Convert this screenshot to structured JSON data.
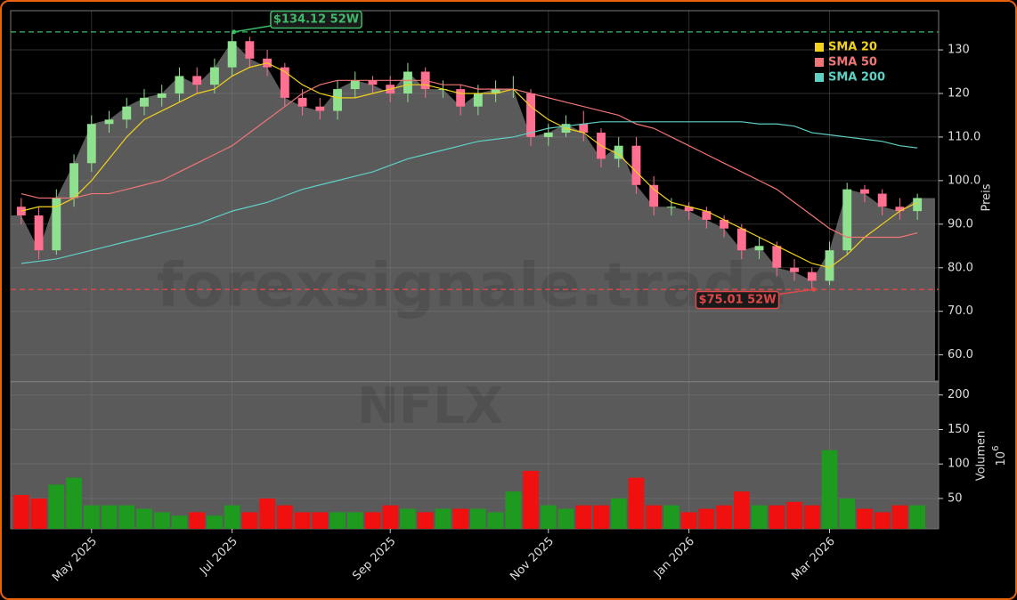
{
  "chart_data": [
    {
      "type": "candlestick",
      "watermark": "forexsignale.trade",
      "symbol": "NFLX",
      "y_label": "Preis",
      "ylim": [
        54,
        139
      ],
      "yticks": [
        {
          "value": 60,
          "label": "60.0"
        },
        {
          "value": 70,
          "label": "70.0"
        },
        {
          "value": 80,
          "label": "80.0"
        },
        {
          "value": 90,
          "label": "90.0"
        },
        {
          "value": 100,
          "label": "100.0"
        },
        {
          "value": 110,
          "label": "110.0"
        },
        120,
        130
      ],
      "grid": true,
      "legend": "upper right",
      "up_color": "#8fe08f",
      "down_color": "#ff6f8f",
      "area_color": "#5a5a5a",
      "open": [
        94,
        92,
        84,
        96,
        104,
        113,
        114,
        117,
        119,
        120,
        124,
        122,
        126,
        132,
        128,
        126,
        119,
        117,
        116,
        121,
        123,
        122,
        120,
        125,
        121,
        121,
        117,
        120,
        121,
        120,
        110,
        111,
        113,
        111,
        105,
        108,
        99,
        94,
        94,
        93,
        91,
        89,
        84,
        85,
        80,
        79,
        77,
        84,
        98,
        97,
        94,
        93
      ],
      "high": [
        96,
        94,
        98,
        106,
        115,
        116,
        119,
        121,
        122,
        126,
        126,
        128,
        134.12,
        133,
        130,
        127,
        121,
        119,
        123,
        125,
        124,
        124,
        127,
        126,
        123,
        122,
        122,
        123,
        124,
        121,
        113,
        115,
        116,
        112,
        110,
        110,
        101,
        96,
        95,
        94,
        92,
        90,
        87,
        86,
        82,
        80,
        86,
        99.5,
        99,
        98,
        96,
        97
      ],
      "low": [
        90,
        82,
        83,
        94,
        102,
        111,
        112,
        115,
        117,
        118,
        120,
        120,
        124,
        126,
        124,
        117,
        115,
        114,
        114,
        119,
        120,
        118,
        118,
        119,
        119,
        115,
        115,
        118,
        119,
        108,
        108,
        110,
        109,
        103,
        103,
        97,
        92,
        92,
        91,
        89,
        87,
        82,
        82,
        78,
        77,
        75.01,
        76,
        83,
        95,
        92,
        91,
        91
      ],
      "close": [
        92,
        84,
        96,
        104,
        113,
        114,
        117,
        119,
        120,
        124,
        122,
        126,
        132,
        128,
        126,
        119,
        117,
        116,
        121,
        123,
        122,
        120,
        125,
        121,
        121,
        117,
        120,
        121,
        121,
        110,
        111,
        113,
        111,
        105,
        108,
        99,
        94,
        94,
        93,
        91,
        89,
        84,
        85,
        80,
        79,
        77,
        84,
        98,
        97,
        94,
        93,
        96
      ],
      "series": [
        {
          "name": "SMA 20",
          "color": "#f2d21b",
          "values": [
            93,
            94,
            94,
            96,
            100,
            105,
            110,
            114,
            116,
            118,
            120,
            121,
            124,
            126,
            127,
            125,
            122,
            120,
            119,
            119,
            120,
            121,
            122,
            122,
            121,
            120,
            120,
            120,
            121,
            117,
            114,
            112,
            111,
            108,
            106,
            102,
            98,
            95,
            94,
            93,
            91,
            89,
            87,
            85,
            83,
            81,
            80,
            83,
            87,
            90,
            93,
            95
          ]
        },
        {
          "name": "SMA 50",
          "color": "#f07575",
          "values": [
            97,
            96,
            96,
            96,
            97,
            97,
            98,
            99,
            100,
            102,
            104,
            106,
            108,
            111,
            114,
            117,
            120,
            122,
            123,
            123,
            123,
            123,
            123,
            123,
            122,
            122,
            121,
            121,
            121,
            120,
            119,
            118,
            117,
            116,
            115,
            113,
            112,
            110,
            108,
            106,
            104,
            102,
            100,
            98,
            95,
            92,
            89,
            87,
            87,
            87,
            87,
            88
          ]
        },
        {
          "name": "SMA 200",
          "color": "#5fd0c4",
          "values": [
            81,
            81.5,
            82,
            83,
            84,
            85,
            86,
            87,
            88,
            89,
            90,
            91.5,
            93,
            94,
            95,
            96.5,
            98,
            99,
            100,
            101,
            102,
            103.5,
            105,
            106,
            107,
            108,
            109,
            109.5,
            110,
            111,
            112,
            112.5,
            113,
            113.5,
            113.5,
            113.5,
            113.5,
            113.5,
            113.5,
            113.5,
            113.5,
            113.5,
            113,
            113,
            112.5,
            111,
            110.5,
            110,
            109.5,
            109,
            108,
            107.5
          ]
        }
      ],
      "annotations": [
        {
          "text": "$134.12 52W",
          "value": 134.12,
          "color": "#3dbb6a"
        },
        {
          "text": "$75.01 52W",
          "value": 75.01,
          "color": "#e04848"
        }
      ]
    },
    {
      "type": "bar",
      "y_label": "Volumen",
      "y_exponent": "10",
      "y_exponent_power": "6",
      "ylim": [
        6,
        219
      ],
      "yticks": [
        50,
        100,
        150,
        200
      ],
      "up_color": "#1e9a1e",
      "down_color": "#f01010",
      "categories": [
        null,
        null,
        null,
        null,
        "May 2025",
        null,
        null,
        null,
        null,
        null,
        null,
        null,
        "Jul 2025",
        null,
        null,
        null,
        null,
        null,
        null,
        null,
        null,
        "Sep 2025",
        null,
        null,
        null,
        null,
        null,
        null,
        null,
        null,
        "Nov 2025",
        null,
        null,
        null,
        null,
        null,
        null,
        null,
        "Jan 2026",
        null,
        null,
        null,
        null,
        null,
        null,
        null,
        "Mar 2026",
        null,
        null,
        null,
        null,
        null
      ],
      "values": [
        55,
        50,
        70,
        80,
        40,
        40,
        40,
        35,
        30,
        25,
        30,
        25,
        40,
        30,
        50,
        40,
        30,
        30,
        30,
        30,
        30,
        40,
        35,
        30,
        35,
        35,
        35,
        30,
        60,
        90,
        40,
        35,
        40,
        40,
        50,
        80,
        40,
        40,
        30,
        35,
        40,
        60,
        40,
        40,
        45,
        40,
        120,
        50,
        35,
        30,
        40,
        40
      ]
    }
  ]
}
